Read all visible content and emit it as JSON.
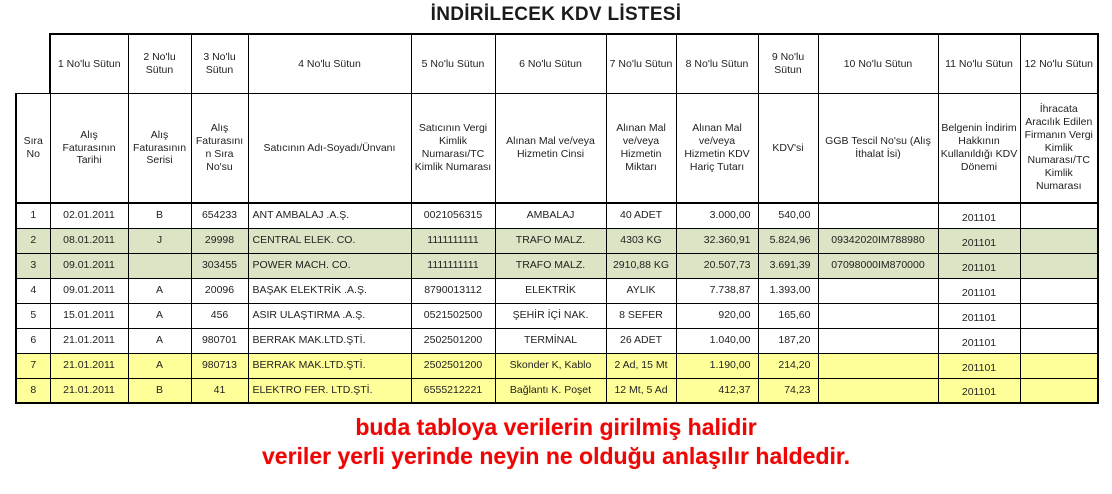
{
  "title": "İNDİRİLECEK KDV LİSTESİ",
  "table": {
    "numbered_headers": [
      "1 No'lu Sütun",
      "2 No'lu Sütun",
      "3 No'lu Sütun",
      "4 No'lu Sütun",
      "5 No'lu Sütun",
      "6 No'lu Sütun",
      "7 No'lu Sütun",
      "8 No'lu Sütun",
      "9 No'lu Sütun",
      "10 No'lu Sütun",
      "11 No'lu Sütun",
      "12 No'lu Sütun"
    ],
    "column_headers": [
      "Sıra No",
      "Alış Faturasının Tarihi",
      "Alış Faturasının Serisi",
      "Alış Faturasının Sıra No'su",
      "Satıcının Adı-Soyadı/Ünvanı",
      "Satıcının Vergi Kimlik Numarası/TC Kimlik Numarası",
      "Alınan Mal ve/veya Hizmetin Cinsi",
      "Alınan Mal ve/veya Hizmetin Miktarı",
      "Alınan Mal ve/veya Hizmetin KDV Hariç Tutarı",
      "KDV'si",
      "GGB Tescil No'su (Alış İthalat İsi)",
      "Belgenin İndirim Hakkının Kullanıldığı KDV Dönemi",
      "İhracata Aracılık Edilen Firmanın Vergi Kimlik Numarası/TC Kimlik Numarası"
    ],
    "rows": [
      {
        "band": "white",
        "cells": [
          "1",
          "02.01.2011",
          "B",
          "654233",
          "ANT AMBALAJ .A.Ş.",
          "0021056315",
          "AMBALAJ",
          "40 ADET",
          "3.000,00",
          "540,00",
          "",
          "201101",
          ""
        ]
      },
      {
        "band": "green",
        "cells": [
          "2",
          "08.01.2011",
          "J",
          "29998",
          "CENTRAL ELEK. CO.",
          "1111111111",
          "TRAFO MALZ.",
          "4303 KG",
          "32.360,91",
          "5.824,96",
          "09342020IM788980",
          "201101",
          ""
        ]
      },
      {
        "band": "green",
        "cells": [
          "3",
          "09.01.2011",
          "",
          "303455",
          "POWER MACH. CO.",
          "1111111111",
          "TRAFO MALZ.",
          "2910,88 KG",
          "20.507,73",
          "3.691,39",
          "07098000IM870000",
          "201101",
          ""
        ]
      },
      {
        "band": "white",
        "cells": [
          "4",
          "09.01.2011",
          "A",
          "20096",
          "BAŞAK ELEKTRİK .A.Ş.",
          "8790013112",
          "ELEKTRİK",
          "AYLIK",
          "7.738,87",
          "1.393,00",
          "",
          "201101",
          ""
        ]
      },
      {
        "band": "white",
        "cells": [
          "5",
          "15.01.2011",
          "A",
          "456",
          "ASIR ULAŞTIRMA .A.Ş.",
          "0521502500",
          "ŞEHİR İÇİ NAK.",
          "8 SEFER",
          "920,00",
          "165,60",
          "",
          "201101",
          ""
        ]
      },
      {
        "band": "white",
        "cells": [
          "6",
          "21.01.2011",
          "A",
          "980701",
          "BERRAK MAK.LTD.ŞTİ.",
          "2502501200",
          "TERMİNAL",
          "26 ADET",
          "1.040,00",
          "187,20",
          "",
          "201101",
          ""
        ]
      },
      {
        "band": "yellow",
        "cells": [
          "7",
          "21.01.2011",
          "A",
          "980713",
          "BERRAK MAK.LTD.ŞTİ.",
          "2502501200",
          "Skonder K, Kablo",
          "2 Ad, 15 Mt",
          "1.190,00",
          "214,20",
          "",
          "201101",
          ""
        ]
      },
      {
        "band": "yellow",
        "cells": [
          "8",
          "21.01.2011",
          "B",
          "41",
          "ELEKTRO FER. LTD.ŞTİ.",
          "6555212221",
          "Bağlantı K. Poşet",
          "12 Mt, 5 Ad",
          "412,37",
          "74,23",
          "",
          "201101",
          ""
        ]
      }
    ]
  },
  "footer": {
    "line1": "buda tabloya verilerin girilmiş halidir",
    "line2": "veriler yerli yerinde neyin ne olduğu anlaşılır haldedir."
  },
  "colors": {
    "green_row": "#dbe4c4",
    "yellow_row": "#ffff99",
    "footer_text": "#f00505",
    "border": "#000000"
  }
}
